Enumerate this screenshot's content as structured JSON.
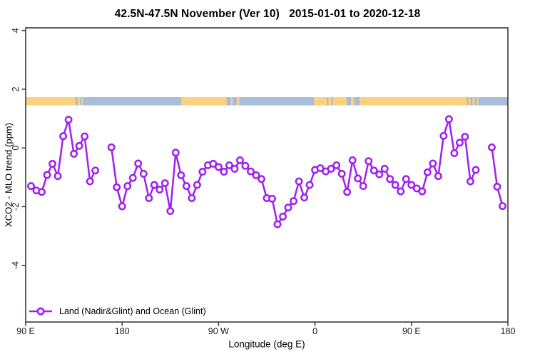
{
  "chart": {
    "title": "42.5N-47.5N November (Ver 10)   2015-01-01 to 2020-12-18",
    "xlabel": "Longitude (deg E)",
    "ylabel": "XCO2 - MLO trend (ppm)",
    "legend_label": "Land (Nadir&Glint) and Ocean (Glint)"
  },
  "chart_data": {
    "type": "line",
    "title": "42.5N-47.5N November (Ver 10)   2015-01-01 to 2020-12-18",
    "xlabel": "Longitude (deg E)",
    "ylabel": "XCO2 - MLO trend (ppm)",
    "legend": [
      "Land (Nadir&Glint) and Ocean (Glint)"
    ],
    "legend_position": "bottom-left-inside",
    "grid": false,
    "axis_color": "#3a3a3a",
    "x_axis": {
      "range": [
        90,
        540
      ],
      "wraps_longitude": true,
      "ticks": [
        90,
        180,
        270,
        360,
        450,
        540
      ],
      "tick_labels": [
        "90 E",
        "180",
        "90 W",
        "0",
        "90 E",
        "180"
      ]
    },
    "y_axis": {
      "range": [
        -5.93,
        4.09
      ],
      "ticks": [
        4,
        2,
        0,
        -2,
        -4
      ],
      "tick_labels": [
        "4",
        "2",
        "0",
        "-2",
        "-4"
      ],
      "labels_rotated": true
    },
    "series": [
      {
        "name": "Land (Nadir&Glint) and Ocean (Glint)",
        "color": "#A020F0",
        "marker": "open-circle",
        "segments": [
          {
            "x": [
              95,
              100,
              105,
              110,
              115,
              120,
              125,
              130,
              135,
              140,
              145,
              150,
              155
            ],
            "y": [
              -1.3,
              -1.45,
              -1.5,
              -0.92,
              -0.54,
              -0.96,
              0.4,
              0.96,
              -0.2,
              0.07,
              0.39,
              -1.14,
              -0.77
            ]
          },
          {
            "x": [
              170,
              175,
              180,
              185,
              190,
              195,
              200,
              205,
              210,
              215,
              220,
              225,
              230,
              235,
              240,
              245,
              250,
              255,
              260,
              265,
              270,
              275,
              280,
              285,
              290,
              295,
              300,
              305,
              310,
              315,
              320,
              325,
              330,
              335,
              340,
              345,
              350,
              355,
              360,
              365,
              370,
              375,
              380,
              385,
              390,
              395,
              400,
              405,
              410,
              415,
              420,
              425,
              430,
              435,
              440,
              445,
              450,
              455,
              460,
              465,
              470,
              475,
              480,
              485,
              490,
              495,
              500,
              505,
              510
            ],
            "y": [
              0.02,
              -1.34,
              -1.99,
              -1.3,
              -1.02,
              -0.53,
              -0.88,
              -1.71,
              -1.26,
              -1.42,
              -1.2,
              -2.15,
              -0.16,
              -0.93,
              -1.3,
              -1.71,
              -1.26,
              -0.81,
              -0.59,
              -0.54,
              -0.65,
              -0.81,
              -0.59,
              -0.71,
              -0.42,
              -0.61,
              -0.8,
              -0.93,
              -1.06,
              -1.71,
              -1.73,
              -2.6,
              -2.34,
              -2.03,
              -1.81,
              -1.14,
              -1.69,
              -1.26,
              -0.75,
              -0.69,
              -0.8,
              -0.71,
              -0.59,
              -0.88,
              -1.5,
              -0.42,
              -1.04,
              -1.3,
              -0.45,
              -0.77,
              -0.9,
              -0.71,
              -1.06,
              -1.26,
              -1.48,
              -1.06,
              -1.26,
              -1.38,
              -1.48,
              -0.83,
              -0.53,
              -0.96,
              0.41,
              0.98,
              -0.18,
              0.18,
              0.38,
              -1.14,
              -0.75
            ]
          },
          {
            "x": [
              525,
              530,
              535
            ],
            "y": [
              0.02,
              -1.32,
              -1.98
            ]
          }
        ]
      }
    ],
    "map_strip": {
      "description": "land/water map band across plot",
      "value_top": 1.73,
      "value_bottom": 1.45,
      "land_color": "#FBD07E",
      "water_color": "#A8BDD9",
      "water_ranges": [
        [
          136.5,
          236
        ],
        [
          277.5,
          281.5
        ],
        [
          283,
          287
        ],
        [
          289.5,
          359
        ],
        [
          371,
          372.5
        ],
        [
          375,
          376.5
        ],
        [
          389.5,
          393.5
        ],
        [
          396.5,
          401.5
        ],
        [
          501.7,
          540
        ]
      ],
      "island_ranges": [
        [
          138.5,
          140.5
        ],
        [
          142,
          143.5
        ],
        [
          235,
          236.5
        ],
        [
          503,
          505
        ],
        [
          507,
          509
        ],
        [
          511,
          512.5
        ]
      ]
    }
  }
}
